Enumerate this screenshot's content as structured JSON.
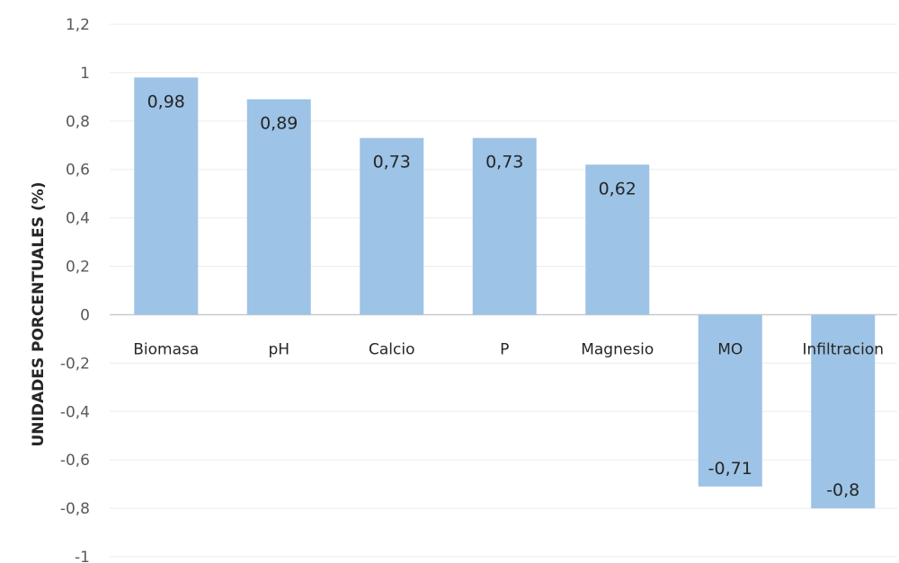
{
  "chart_data": {
    "type": "bar",
    "title": "",
    "xlabel": "",
    "ylabel": "UNIDADES PORCENTUALES (%)",
    "categories": [
      "Biomasa",
      "pH",
      "Calcio",
      "P",
      "Magnesio",
      "MO",
      "Infiltracion"
    ],
    "values": [
      0.98,
      0.89,
      0.73,
      0.73,
      0.62,
      -0.71,
      -0.8
    ],
    "data_labels": [
      "0,98",
      "0,89",
      "0,73",
      "0,73",
      "0,62",
      "-0,71",
      "-0,8"
    ],
    "ylim": [
      -1,
      1.2
    ],
    "yticks": [
      1.2,
      1,
      0.8,
      0.6,
      0.4,
      0.2,
      0,
      -0.2,
      -0.4,
      -0.6,
      -0.8,
      -1
    ],
    "ytick_labels": [
      "1,2",
      "1",
      "0,8",
      "0,6",
      "0,4",
      "0,2",
      "0",
      "-0,2",
      "-0,4",
      "-0,6",
      "-0,8",
      "-1"
    ],
    "grid": true,
    "legend": "none",
    "colors": {
      "bar": "#9dc3e6",
      "gridline": "#ececec",
      "zero_line": "#c9c9c9"
    }
  }
}
